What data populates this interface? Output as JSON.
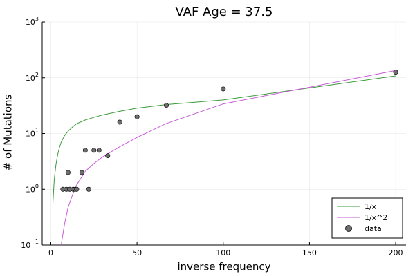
{
  "chart_data": {
    "type": "scatter",
    "title": "VAF Age = 37.5",
    "xlabel": "inverse frequency",
    "ylabel": "# of Mutations",
    "x_scale": "linear",
    "y_scale": "log10",
    "xlim": [
      -5,
      206
    ],
    "ylim": [
      0.1,
      1000
    ],
    "x_ticks": [
      0,
      50,
      100,
      150,
      200
    ],
    "x_tick_labels": [
      "0",
      "50",
      "100",
      "150",
      "200"
    ],
    "y_ticks": [
      0.1,
      1,
      10,
      100,
      1000
    ],
    "y_tick_labels": [
      {
        "base": "10",
        "exp": "−1"
      },
      {
        "base": "10",
        "exp": "0"
      },
      {
        "base": "10",
        "exp": "1"
      },
      {
        "base": "10",
        "exp": "2"
      },
      {
        "base": "10",
        "exp": "3"
      }
    ],
    "grid": true,
    "legend_position": "bottom-right",
    "series": [
      {
        "name": "1/x",
        "kind": "line",
        "color": "#3a9a3a",
        "x": [
          1.2,
          2,
          3,
          4,
          5,
          6,
          8,
          10,
          12.5,
          15,
          20,
          25,
          30,
          40,
          50,
          66.7,
          100,
          200
        ],
        "y": [
          0.55,
          1.5,
          2.8,
          4.2,
          5.6,
          7.0,
          9.2,
          11.0,
          13.0,
          15.0,
          17.5,
          19.5,
          21.5,
          25.0,
          28.5,
          33.0,
          40.0,
          108
        ]
      },
      {
        "name": "1/x^2",
        "kind": "line",
        "color": "#c65ad6",
        "x": [
          6,
          8,
          10,
          12.5,
          15,
          20,
          25,
          30,
          40,
          50,
          66.7,
          100,
          200
        ],
        "y": [
          0.1,
          0.24,
          0.47,
          0.78,
          1.2,
          2.1,
          2.9,
          3.8,
          5.8,
          8.5,
          15,
          34,
          135
        ]
      },
      {
        "name": "data",
        "kind": "scatter",
        "color": "#6e6e6e",
        "x": [
          7,
          9,
          10,
          11,
          13,
          14,
          15,
          18,
          20,
          22,
          25,
          28,
          33,
          40,
          50,
          67,
          100,
          200
        ],
        "y": [
          1,
          1,
          2,
          1,
          1,
          1,
          1,
          2,
          5,
          1,
          5,
          5,
          4,
          16,
          20,
          32,
          63,
          126
        ]
      }
    ]
  }
}
